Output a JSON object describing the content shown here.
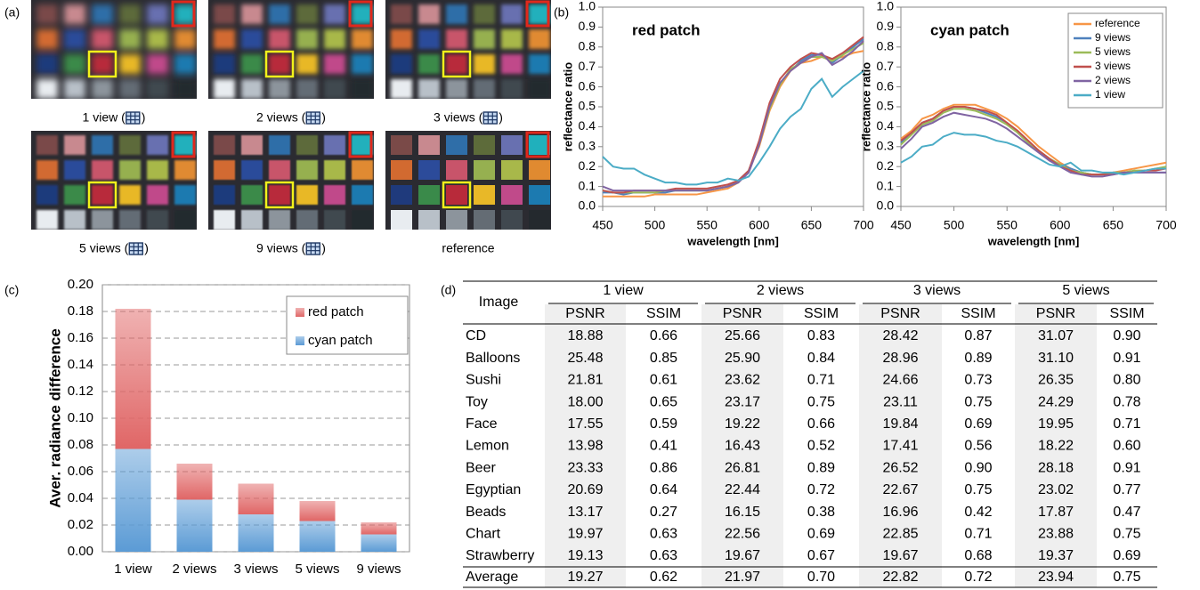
{
  "panel_labels": [
    "(a)",
    "(b)",
    "(c)",
    "(d)"
  ],
  "images": [
    {
      "caption": "1 view (",
      "caption_end": ")"
    },
    {
      "caption": "2 views (",
      "caption_end": ")"
    },
    {
      "caption": "3 views (",
      "caption_end": ")"
    },
    {
      "caption": "5 views (",
      "caption_end": ")"
    },
    {
      "caption": "9 views (",
      "caption_end": ")"
    },
    {
      "caption": "reference"
    }
  ],
  "chart_data": [
    {
      "type": "line",
      "title": "red patch",
      "xlabel": "wavelength [nm]",
      "ylabel": "reflectance ratio",
      "x": [
        450,
        460,
        470,
        480,
        490,
        500,
        510,
        520,
        530,
        540,
        550,
        560,
        570,
        580,
        590,
        600,
        610,
        620,
        630,
        640,
        650,
        660,
        670,
        680,
        690,
        700
      ],
      "xlim": [
        450,
        700
      ],
      "xticks": [
        450,
        500,
        550,
        600,
        650,
        700
      ],
      "ylim": [
        0,
        1
      ],
      "yticks": [
        {
          "value": 0,
          "label": "0.0"
        },
        0.1,
        0.2,
        0.3,
        0.4,
        0.5,
        0.6,
        0.7,
        0.8,
        0.9,
        {
          "value": 1,
          "label": "1.0"
        }
      ],
      "series": [
        {
          "name": "reference",
          "color": "#f79646",
          "values": [
            0.05,
            0.05,
            0.05,
            0.05,
            0.05,
            0.06,
            0.06,
            0.06,
            0.06,
            0.06,
            0.07,
            0.08,
            0.09,
            0.12,
            0.18,
            0.3,
            0.48,
            0.6,
            0.68,
            0.72,
            0.73,
            0.75,
            0.74,
            0.75,
            0.77,
            0.78
          ]
        },
        {
          "name": "9 views",
          "color": "#4f81bd",
          "values": [
            0.07,
            0.07,
            0.06,
            0.07,
            0.07,
            0.07,
            0.07,
            0.08,
            0.08,
            0.08,
            0.08,
            0.09,
            0.1,
            0.13,
            0.18,
            0.32,
            0.5,
            0.62,
            0.68,
            0.73,
            0.76,
            0.76,
            0.72,
            0.76,
            0.8,
            0.84
          ]
        },
        {
          "name": "5 views",
          "color": "#9bbb59",
          "values": [
            0.08,
            0.07,
            0.07,
            0.07,
            0.07,
            0.07,
            0.08,
            0.08,
            0.08,
            0.08,
            0.08,
            0.09,
            0.1,
            0.12,
            0.18,
            0.31,
            0.49,
            0.61,
            0.69,
            0.72,
            0.75,
            0.75,
            0.73,
            0.76,
            0.79,
            0.82
          ]
        },
        {
          "name": "3 views",
          "color": "#c0504d",
          "values": [
            0.08,
            0.07,
            0.07,
            0.08,
            0.08,
            0.08,
            0.08,
            0.09,
            0.09,
            0.09,
            0.09,
            0.1,
            0.11,
            0.13,
            0.18,
            0.33,
            0.52,
            0.64,
            0.7,
            0.74,
            0.77,
            0.76,
            0.74,
            0.77,
            0.81,
            0.85
          ]
        },
        {
          "name": "2 views",
          "color": "#8064a2",
          "values": [
            0.1,
            0.08,
            0.08,
            0.08,
            0.08,
            0.08,
            0.08,
            0.08,
            0.08,
            0.08,
            0.08,
            0.09,
            0.1,
            0.12,
            0.17,
            0.31,
            0.5,
            0.62,
            0.68,
            0.72,
            0.75,
            0.77,
            0.71,
            0.74,
            0.78,
            0.83
          ]
        },
        {
          "name": "1 view",
          "color": "#4bacc6",
          "values": [
            0.25,
            0.2,
            0.19,
            0.19,
            0.16,
            0.14,
            0.12,
            0.12,
            0.11,
            0.11,
            0.12,
            0.12,
            0.14,
            0.13,
            0.15,
            0.22,
            0.3,
            0.39,
            0.45,
            0.49,
            0.59,
            0.64,
            0.55,
            0.6,
            0.64,
            0.68
          ]
        }
      ]
    },
    {
      "type": "line",
      "title": "cyan patch",
      "xlabel": "wavelength [nm]",
      "ylabel": "reflectance ratio",
      "legend": "upper right",
      "x": [
        450,
        460,
        470,
        480,
        490,
        500,
        510,
        520,
        530,
        540,
        550,
        560,
        570,
        580,
        590,
        600,
        610,
        620,
        630,
        640,
        650,
        660,
        670,
        680,
        690,
        700
      ],
      "xlim": [
        450,
        700
      ],
      "xticks": [
        450,
        500,
        550,
        600,
        650,
        700
      ],
      "ylim": [
        0,
        1
      ],
      "yticks": [
        {
          "value": 0,
          "label": "0.0"
        },
        0.1,
        0.2,
        0.3,
        0.4,
        0.5,
        0.6,
        0.7,
        0.8,
        0.9,
        {
          "value": 1,
          "label": "1.0"
        }
      ],
      "series": [
        {
          "name": "reference",
          "color": "#f79646",
          "values": [
            0.34,
            0.38,
            0.44,
            0.46,
            0.49,
            0.51,
            0.51,
            0.51,
            0.49,
            0.47,
            0.44,
            0.4,
            0.35,
            0.3,
            0.26,
            0.22,
            0.19,
            0.17,
            0.16,
            0.16,
            0.17,
            0.18,
            0.19,
            0.2,
            0.21,
            0.22
          ]
        },
        {
          "name": "9 views",
          "color": "#4f81bd",
          "values": [
            0.32,
            0.37,
            0.42,
            0.44,
            0.48,
            0.5,
            0.5,
            0.49,
            0.47,
            0.45,
            0.42,
            0.37,
            0.32,
            0.28,
            0.24,
            0.21,
            0.19,
            0.17,
            0.16,
            0.16,
            0.17,
            0.17,
            0.17,
            0.17,
            0.17,
            0.17
          ]
        },
        {
          "name": "5 views",
          "color": "#9bbb59",
          "values": [
            0.31,
            0.36,
            0.41,
            0.43,
            0.47,
            0.49,
            0.49,
            0.48,
            0.46,
            0.44,
            0.41,
            0.37,
            0.32,
            0.28,
            0.24,
            0.21,
            0.18,
            0.17,
            0.16,
            0.16,
            0.17,
            0.17,
            0.18,
            0.18,
            0.19,
            0.2
          ]
        },
        {
          "name": "3 views",
          "color": "#c0504d",
          "values": [
            0.33,
            0.37,
            0.42,
            0.44,
            0.48,
            0.5,
            0.5,
            0.49,
            0.48,
            0.46,
            0.42,
            0.38,
            0.33,
            0.28,
            0.24,
            0.2,
            0.18,
            0.16,
            0.16,
            0.16,
            0.16,
            0.17,
            0.17,
            0.18,
            0.18,
            0.19
          ]
        },
        {
          "name": "2 views",
          "color": "#8064a2",
          "values": [
            0.29,
            0.34,
            0.4,
            0.42,
            0.45,
            0.47,
            0.46,
            0.45,
            0.44,
            0.42,
            0.39,
            0.35,
            0.31,
            0.27,
            0.23,
            0.2,
            0.17,
            0.16,
            0.15,
            0.15,
            0.16,
            0.17,
            0.17,
            0.17,
            0.17,
            0.17
          ]
        },
        {
          "name": "1 view",
          "color": "#4bacc6",
          "values": [
            0.22,
            0.25,
            0.3,
            0.31,
            0.35,
            0.37,
            0.36,
            0.36,
            0.35,
            0.33,
            0.32,
            0.3,
            0.27,
            0.24,
            0.21,
            0.2,
            0.22,
            0.18,
            0.18,
            0.17,
            0.17,
            0.16,
            0.17,
            0.18,
            0.19,
            0.19
          ]
        }
      ]
    },
    {
      "type": "bar",
      "stacked": true,
      "ylabel": "Aver. radiance difference",
      "legend": "upper right",
      "grid": true,
      "categories": [
        "1 view",
        "2 views",
        "3 views",
        "5 views",
        "9 views"
      ],
      "ylim": [
        0,
        0.2
      ],
      "yticks": [
        {
          "value": 0,
          "label": "0.00"
        },
        0.02,
        0.04,
        0.06,
        0.08,
        {
          "value": 0.1,
          "label": "0.10"
        },
        0.12,
        0.14,
        0.16,
        0.18,
        {
          "value": 0.2,
          "label": "0.20"
        }
      ],
      "series": [
        {
          "name": "cyan patch",
          "color": "#5b9bd5",
          "values": [
            0.077,
            0.039,
            0.028,
            0.023,
            0.013
          ]
        },
        {
          "name": "red patch",
          "color": "#e06666",
          "values": [
            0.105,
            0.027,
            0.023,
            0.015,
            0.009
          ]
        }
      ]
    }
  ],
  "table": {
    "corner": "Image",
    "groups": [
      "1 view",
      "2 views",
      "3 views",
      "5 views"
    ],
    "subheaders": [
      "PSNR",
      "SSIM",
      "PSNR",
      "SSIM",
      "PSNR",
      "SSIM",
      "PSNR",
      "SSIM"
    ],
    "rows": [
      [
        "CD",
        "18.88",
        "0.66",
        "25.66",
        "0.83",
        "28.42",
        "0.87",
        "31.07",
        "0.90"
      ],
      [
        "Balloons",
        "25.48",
        "0.85",
        "25.90",
        "0.84",
        "28.96",
        "0.89",
        "31.10",
        "0.91"
      ],
      [
        "Sushi",
        "21.81",
        "0.61",
        "23.62",
        "0.71",
        "24.66",
        "0.73",
        "26.35",
        "0.80"
      ],
      [
        "Toy",
        "18.00",
        "0.65",
        "23.17",
        "0.75",
        "23.11",
        "0.75",
        "24.29",
        "0.78"
      ],
      [
        "Face",
        "17.55",
        "0.59",
        "19.22",
        "0.66",
        "19.84",
        "0.69",
        "19.95",
        "0.71"
      ],
      [
        "Lemon",
        "13.98",
        "0.41",
        "16.43",
        "0.52",
        "17.41",
        "0.56",
        "18.22",
        "0.60"
      ],
      [
        "Beer",
        "23.33",
        "0.86",
        "26.81",
        "0.89",
        "26.52",
        "0.90",
        "28.18",
        "0.91"
      ],
      [
        "Egyptian",
        "20.69",
        "0.64",
        "22.44",
        "0.72",
        "22.67",
        "0.75",
        "23.02",
        "0.77"
      ],
      [
        "Beads",
        "13.17",
        "0.27",
        "16.15",
        "0.38",
        "16.96",
        "0.42",
        "17.87",
        "0.47"
      ],
      [
        "Chart",
        "19.97",
        "0.63",
        "22.56",
        "0.69",
        "22.85",
        "0.71",
        "23.88",
        "0.75"
      ],
      [
        "Strawberry",
        "19.13",
        "0.63",
        "19.67",
        "0.67",
        "19.67",
        "0.68",
        "19.37",
        "0.69"
      ],
      [
        "Average",
        "19.27",
        "0.62",
        "21.97",
        "0.70",
        "22.82",
        "0.72",
        "23.94",
        "0.75"
      ]
    ]
  }
}
